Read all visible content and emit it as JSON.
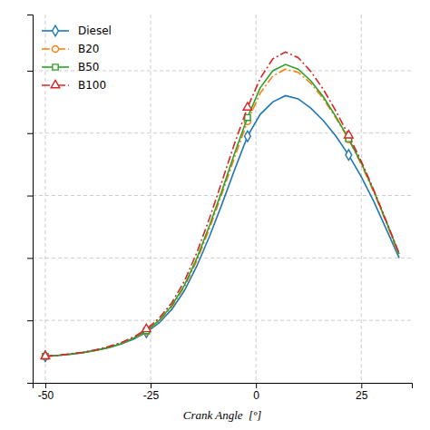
{
  "chart_data": {
    "type": "line",
    "xlabel": "Crank Angle  [º]",
    "x": [
      -50,
      -47,
      -44,
      -41,
      -38,
      -35,
      -32,
      -29,
      -26,
      -23,
      -20,
      -17,
      -14,
      -11,
      -8,
      -5,
      -2,
      1,
      4,
      7,
      10,
      13,
      16,
      19,
      22,
      25,
      28,
      31,
      34
    ],
    "series": [
      {
        "name": "Diesel",
        "line_style": "solid",
        "marker": "diamond",
        "values": [
          0.085,
          0.088,
          0.092,
          0.097,
          0.104,
          0.113,
          0.124,
          0.14,
          0.162,
          0.192,
          0.235,
          0.295,
          0.375,
          0.47,
          0.575,
          0.685,
          0.79,
          0.86,
          0.9,
          0.92,
          0.91,
          0.88,
          0.84,
          0.79,
          0.73,
          0.66,
          0.58,
          0.49,
          0.4
        ]
      },
      {
        "name": "B20",
        "line_style": "dashdot",
        "marker": "circle",
        "values": [
          0.085,
          0.088,
          0.092,
          0.097,
          0.104,
          0.113,
          0.125,
          0.142,
          0.165,
          0.198,
          0.243,
          0.307,
          0.392,
          0.495,
          0.608,
          0.725,
          0.838,
          0.928,
          0.983,
          1.005,
          0.995,
          0.96,
          0.91,
          0.848,
          0.78,
          0.7,
          0.61,
          0.51,
          0.408
        ]
      },
      {
        "name": "B50",
        "line_style": "solid",
        "marker": "square",
        "values": [
          0.085,
          0.088,
          0.092,
          0.097,
          0.104,
          0.113,
          0.126,
          0.143,
          0.167,
          0.2,
          0.247,
          0.312,
          0.4,
          0.505,
          0.618,
          0.738,
          0.85,
          0.945,
          1.0,
          1.02,
          1.005,
          0.968,
          0.916,
          0.852,
          0.782,
          0.704,
          0.614,
          0.514,
          0.412
        ]
      },
      {
        "name": "B100",
        "line_style": "dashdot",
        "marker": "triangle-up",
        "values": [
          0.085,
          0.088,
          0.093,
          0.098,
          0.106,
          0.116,
          0.129,
          0.147,
          0.172,
          0.207,
          0.256,
          0.325,
          0.418,
          0.528,
          0.648,
          0.77,
          0.882,
          0.975,
          1.038,
          1.06,
          1.042,
          0.998,
          0.94,
          0.87,
          0.793,
          0.71,
          0.616,
          0.516,
          0.414
        ]
      }
    ],
    "xlim": [
      -53,
      37
    ],
    "ylim": [
      0.0,
      1.18
    ],
    "xticks": [
      -50,
      -25,
      0,
      25
    ],
    "yticks": [
      0.2,
      0.4,
      0.6,
      0.8,
      1.0
    ],
    "grid": true,
    "legend": "upper left",
    "tick_labels": "x"
  }
}
